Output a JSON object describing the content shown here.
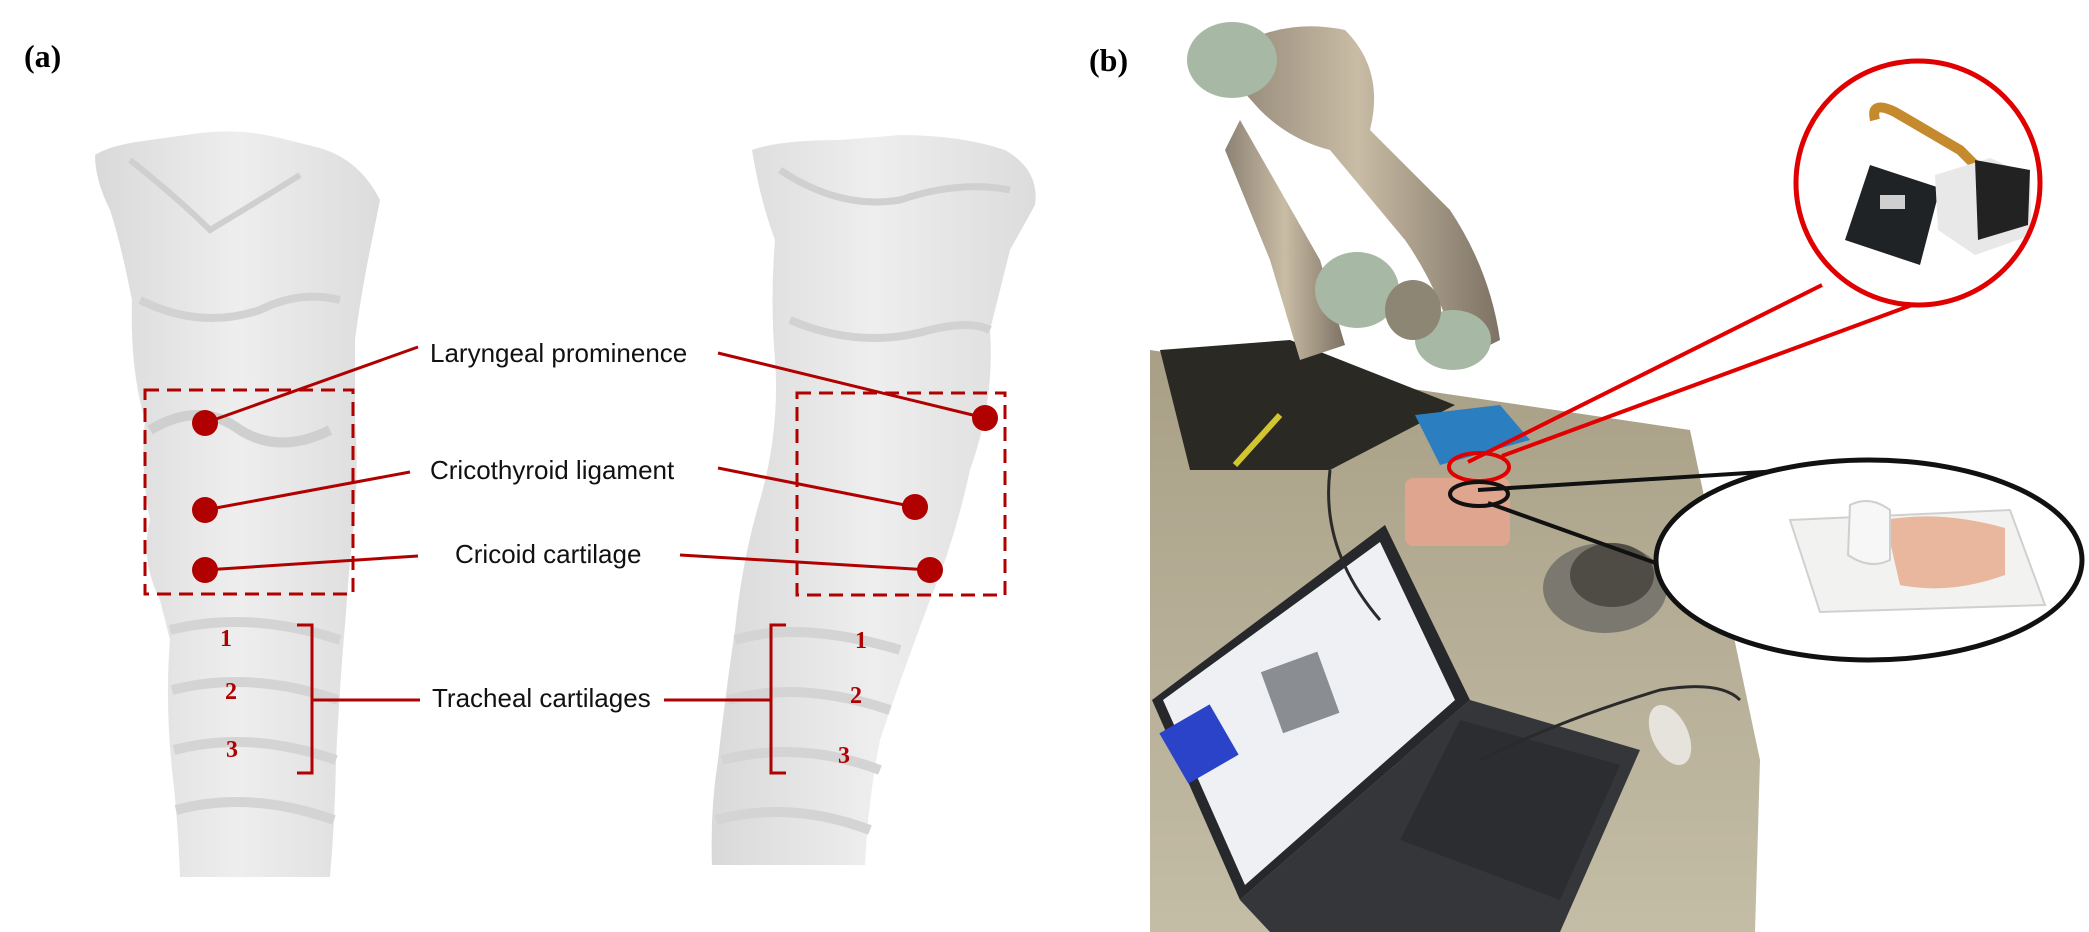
{
  "panel_a": {
    "label": "(a)",
    "annotations": {
      "laryngeal_prominence": "Laryngeal prominence",
      "cricothyroid_ligament": "Cricothyroid ligament",
      "cricoid_cartilage": "Cricoid cartilage",
      "tracheal_cartilages": "Tracheal cartilages"
    },
    "tracheal_numbers": [
      "1",
      "2",
      "3"
    ]
  },
  "panel_b": {
    "label": "(b)"
  },
  "colors": {
    "annotation_red": "#b00000",
    "model_gray": "#e6e6e6",
    "sensor_circle": "#e00000",
    "phantom_circle": "#111111"
  }
}
